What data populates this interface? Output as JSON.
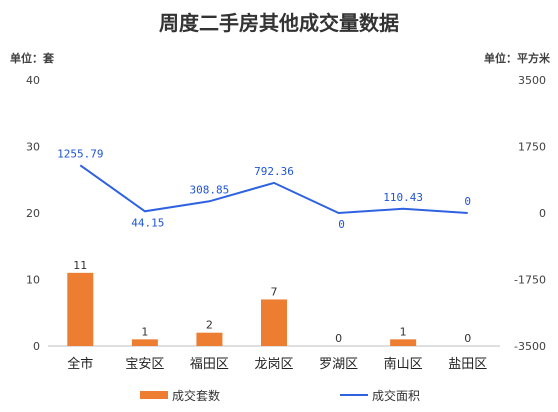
{
  "chart_data": {
    "type": "bar+line",
    "title": "周度二手房其他成交量数据",
    "left_unit": "单位：套",
    "right_unit": "单位：平方米",
    "categories": [
      "全市",
      "宝安区",
      "福田区",
      "龙岗区",
      "罗湖区",
      "南山区",
      "盐田区"
    ],
    "series": [
      {
        "name": "成交套数",
        "type": "bar",
        "axis": "left",
        "values": [
          11,
          1,
          2,
          7,
          0,
          1,
          0
        ],
        "labels": [
          "11",
          "1",
          "2",
          "7",
          "0",
          "1",
          "0"
        ],
        "color": "#ed7d31"
      },
      {
        "name": "成交面积",
        "type": "line",
        "axis": "right",
        "values": [
          1255.79,
          44.15,
          308.85,
          792.36,
          0,
          110.43,
          0
        ],
        "labels": [
          "1255.79",
          "44.15",
          "308.85",
          "792.36",
          "0",
          "110.43",
          "0"
        ],
        "color": "#2f62e0"
      }
    ],
    "left_ylim": [
      0,
      40
    ],
    "left_ticks": [
      "0",
      "10",
      "20",
      "30",
      "40"
    ],
    "right_ylim": [
      -3500,
      3500
    ],
    "right_ticks": [
      "-3500",
      "-1750",
      "0",
      "1750",
      "3500"
    ],
    "grid": false,
    "legend_position": "bottom"
  }
}
